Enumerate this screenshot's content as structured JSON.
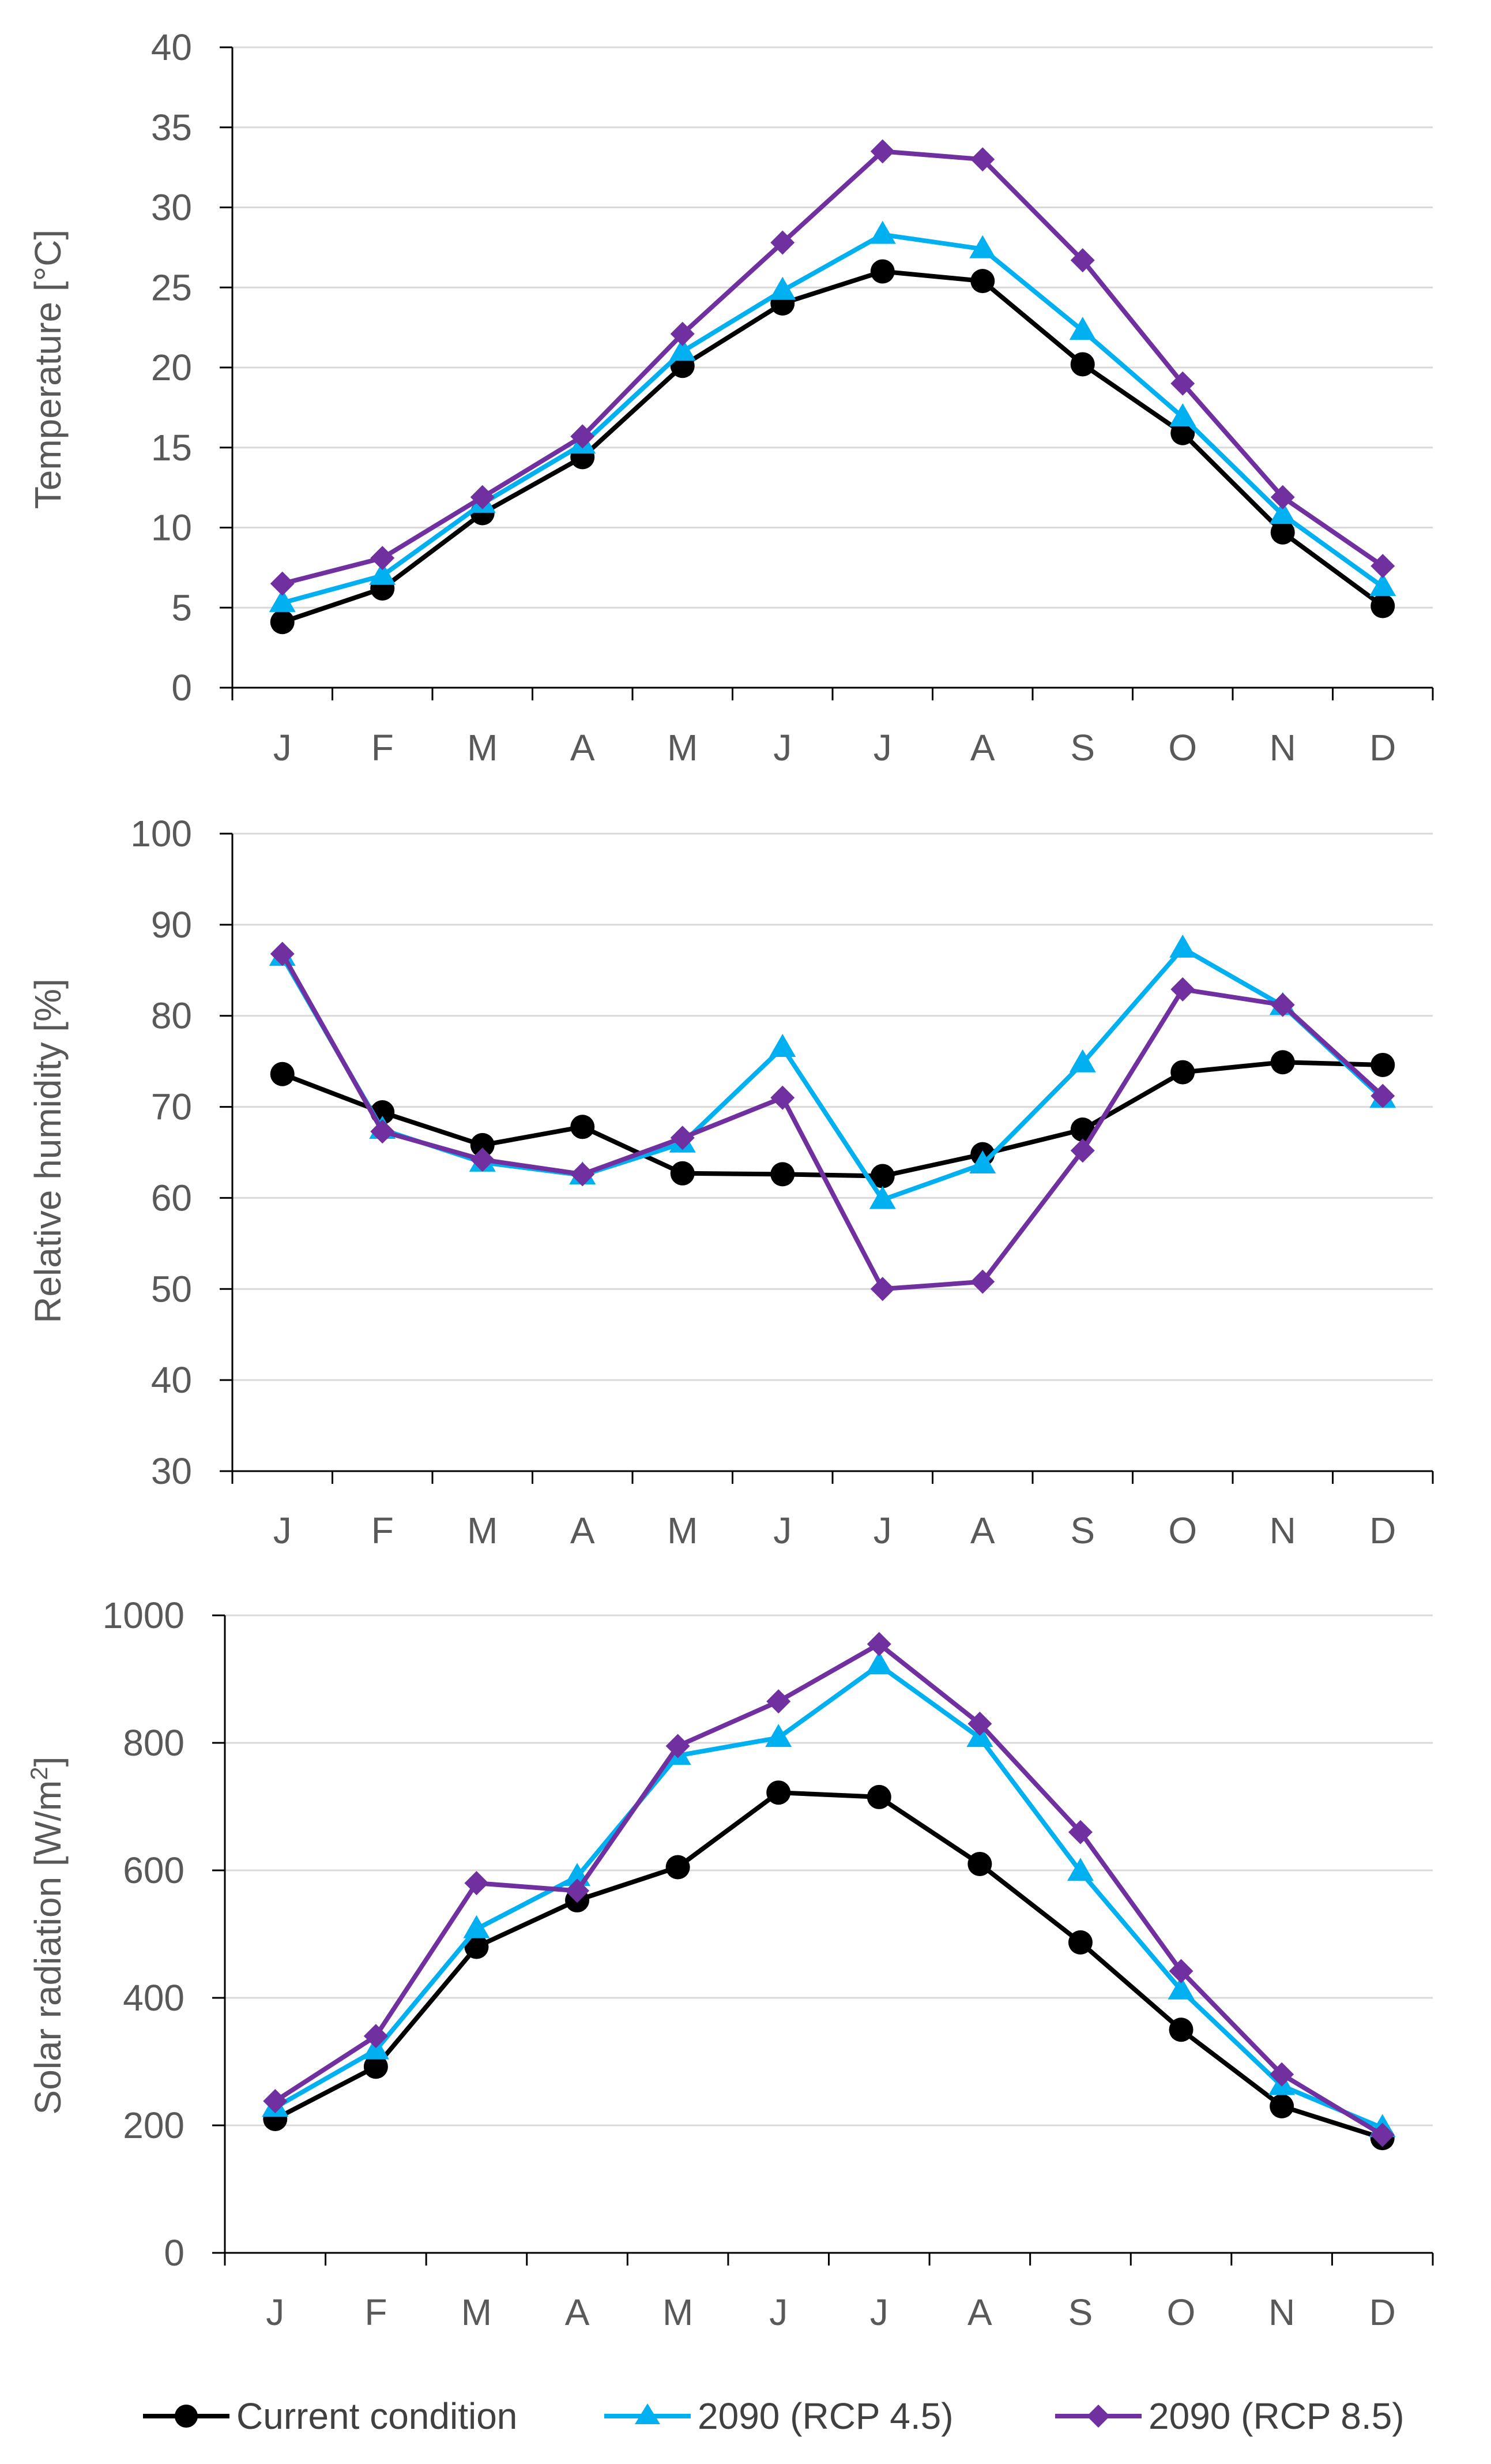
{
  "chart_data": [
    {
      "type": "line",
      "id": "temperature",
      "title": "",
      "xlabel": "",
      "ylabel": "Temperature [°C]",
      "ylim": [
        0,
        40
      ],
      "yticks": [
        0,
        5,
        10,
        15,
        20,
        25,
        30,
        35,
        40
      ],
      "grid": true,
      "categories": [
        "J",
        "F",
        "M",
        "A",
        "M",
        "J",
        "J",
        "A",
        "S",
        "O",
        "N",
        "D"
      ],
      "series": [
        {
          "name": "Current condition",
          "values": [
            4.1,
            6.2,
            10.9,
            14.4,
            20.1,
            24.0,
            26.0,
            25.4,
            20.2,
            15.9,
            9.7,
            5.1
          ]
        },
        {
          "name": "2090 (RCP 4.5)",
          "values": [
            5.3,
            7.0,
            11.5,
            15.2,
            21.0,
            24.8,
            28.3,
            27.4,
            22.3,
            16.9,
            10.8,
            6.3
          ]
        },
        {
          "name": "2090 (RCP 8.5)",
          "values": [
            6.5,
            8.1,
            11.9,
            15.7,
            22.1,
            27.8,
            33.5,
            33.0,
            26.7,
            19.0,
            11.9,
            7.6
          ]
        }
      ]
    },
    {
      "type": "line",
      "id": "humidity",
      "title": "",
      "xlabel": "",
      "ylabel": "Relative humidity [%]",
      "ylim": [
        30,
        100
      ],
      "yticks": [
        30,
        40,
        50,
        60,
        70,
        80,
        90,
        100
      ],
      "grid": true,
      "categories": [
        "J",
        "F",
        "M",
        "A",
        "M",
        "J",
        "J",
        "A",
        "S",
        "O",
        "N",
        "D"
      ],
      "series": [
        {
          "name": "Current condition",
          "values": [
            73.6,
            69.4,
            65.8,
            67.8,
            62.7,
            62.6,
            62.4,
            64.8,
            67.5,
            73.8,
            74.9,
            74.6
          ]
        },
        {
          "name": "2090 (RCP 4.5)",
          "values": [
            86.5,
            67.5,
            63.9,
            62.5,
            66.0,
            76.5,
            59.8,
            63.7,
            74.8,
            87.4,
            81.1,
            70.9
          ]
        },
        {
          "name": "2090 (RCP 8.5)",
          "values": [
            86.8,
            67.3,
            64.2,
            62.6,
            66.6,
            71.0,
            50.0,
            50.8,
            65.2,
            82.9,
            81.2,
            71.2
          ]
        }
      ]
    },
    {
      "type": "line",
      "id": "solar",
      "title": "",
      "xlabel": "",
      "ylabel": "Solar radiation [W/m",
      "ylabel_superscript": "2",
      "ylabel_close": "]",
      "ylim": [
        0,
        1000
      ],
      "yticks": [
        0,
        200,
        400,
        600,
        800,
        1000
      ],
      "grid": true,
      "categories": [
        "J",
        "F",
        "M",
        "A",
        "M",
        "J",
        "J",
        "A",
        "S",
        "O",
        "N",
        "D"
      ],
      "series": [
        {
          "name": "Current condition",
          "values": [
            210,
            292,
            480,
            553,
            605,
            722,
            715,
            610,
            487,
            350,
            230,
            180
          ]
        },
        {
          "name": "2090 (RCP 4.5)",
          "values": [
            228,
            318,
            508,
            590,
            780,
            808,
            922,
            808,
            598,
            412,
            262,
            196
          ]
        },
        {
          "name": "2090 (RCP 8.5)",
          "values": [
            238,
            340,
            580,
            568,
            795,
            865,
            955,
            830,
            660,
            442,
            280,
            185
          ]
        }
      ]
    }
  ],
  "legend": {
    "placement": "bottom-center",
    "items": [
      {
        "label": "Current condition",
        "color": "#000000",
        "marker": "circle"
      },
      {
        "label": "2090 (RCP 4.5)",
        "color": "#00B0F0",
        "marker": "triangle"
      },
      {
        "label": "2090 (RCP 8.5)",
        "color": "#7030A0",
        "marker": "diamond"
      }
    ]
  },
  "colors": {
    "current": "#000000",
    "rcp45": "#00B0F0",
    "rcp85": "#7030A0",
    "axis": "#000000",
    "grid": "#D9D9D9",
    "tick_text": "#595959"
  }
}
